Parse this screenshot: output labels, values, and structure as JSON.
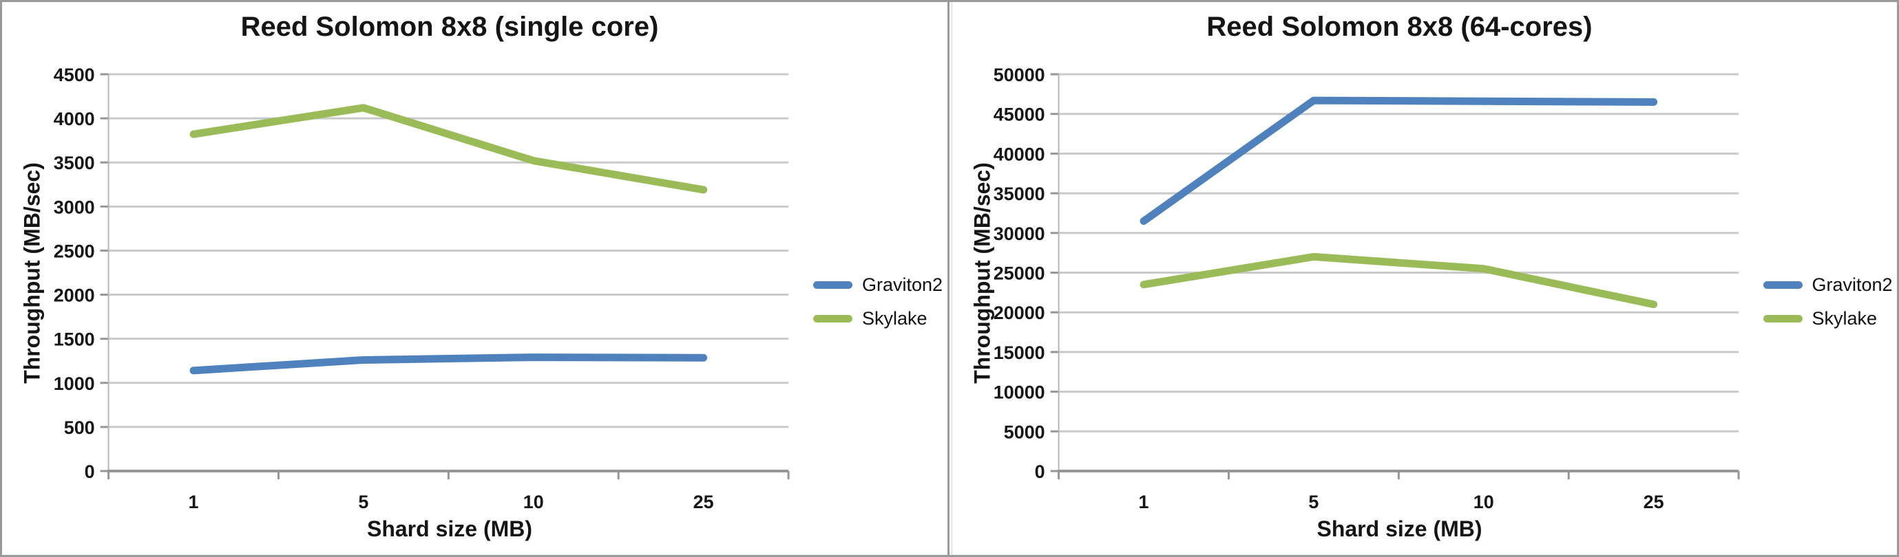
{
  "style": {
    "background": "#FFFFFF",
    "frame_border_color": "#9A9A9A",
    "grid_color": "#C9C9C9",
    "axis_color": "#969696",
    "y_axis_line_color": "#B6B6B6",
    "text_color": "#151515",
    "graviton2_color": "#4F81BD",
    "skylake_color": "#9BBB59"
  },
  "chart_data": [
    {
      "type": "line",
      "title": "Reed Solomon 8x8 (single core)",
      "xlabel": "Shard size (MB)",
      "ylabel": "Throughput (MB/sec)",
      "categories": [
        "1",
        "5",
        "10",
        "25"
      ],
      "series": [
        {
          "name": "Graviton2",
          "color": "#4F81BD",
          "values": [
            1140,
            1260,
            1290,
            1285
          ]
        },
        {
          "name": "Skylake",
          "color": "#9BBB59",
          "values": [
            3820,
            4120,
            3520,
            3190
          ]
        }
      ],
      "ylim": [
        0,
        4500
      ],
      "ystep": 500,
      "yticks": [
        "0",
        "500",
        "1000",
        "1500",
        "2000",
        "2500",
        "3000",
        "3500",
        "4000",
        "4500"
      ],
      "grid": true,
      "legend_position": "right"
    },
    {
      "type": "line",
      "title": "Reed Solomon 8x8 (64-cores)",
      "xlabel": "Shard size (MB)",
      "ylabel": "Throughput (MB/sec)",
      "categories": [
        "1",
        "5",
        "10",
        "25"
      ],
      "series": [
        {
          "name": "Graviton2",
          "color": "#4F81BD",
          "values": [
            31500,
            46700,
            46600,
            46500
          ]
        },
        {
          "name": "Skylake",
          "color": "#9BBB59",
          "values": [
            23500,
            27000,
            25500,
            21000
          ]
        }
      ],
      "ylim": [
        0,
        50000
      ],
      "ystep": 5000,
      "yticks": [
        "0",
        "5000",
        "10000",
        "15000",
        "20000",
        "25000",
        "30000",
        "35000",
        "40000",
        "45000",
        "50000"
      ],
      "grid": true,
      "legend_position": "right"
    }
  ]
}
